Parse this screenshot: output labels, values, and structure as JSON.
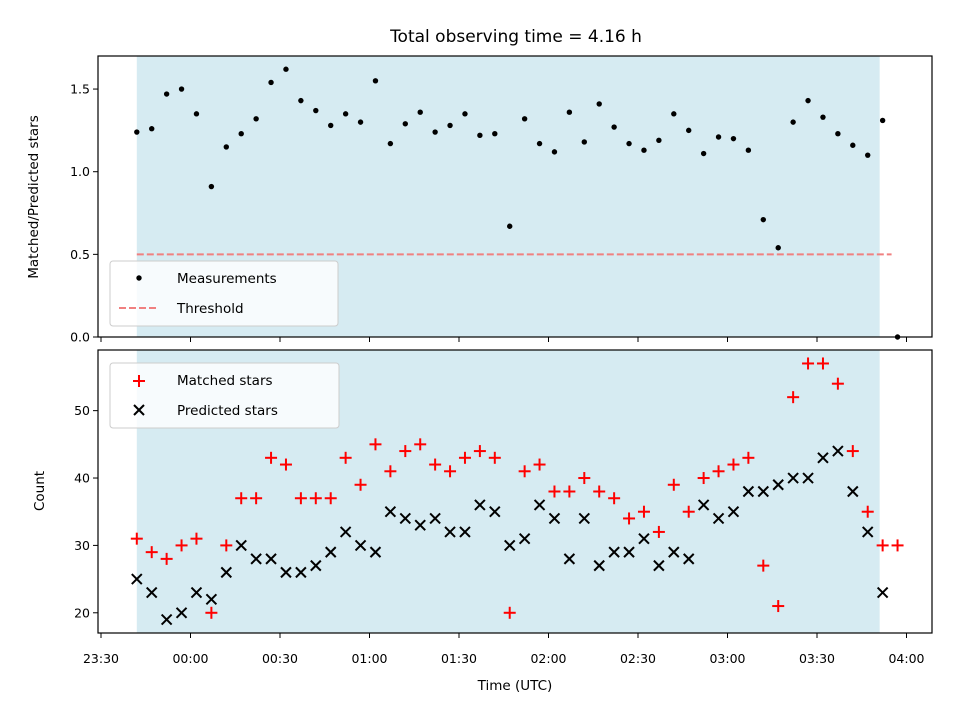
{
  "chart_data": [
    {
      "type": "scatter",
      "title": "Total observing time = 4.16 h",
      "xlabel": "",
      "ylabel": "Matched/Predicted stars",
      "ylim": [
        0,
        1.7
      ],
      "yticks": [
        "0.0",
        "0.5",
        "1.0",
        "1.5"
      ],
      "observing_window": [
        "23:42",
        "03:51"
      ],
      "legend": {
        "placement": "lower-left",
        "entries": [
          "Measurements",
          "Threshold"
        ]
      },
      "threshold": {
        "name": "Threshold",
        "value": 0.5,
        "color": "#f08080"
      },
      "series": [
        {
          "name": "Measurements",
          "color": "#000000",
          "x": [
            "23:42",
            "23:47",
            "23:52",
            "23:57",
            "00:02",
            "00:07",
            "00:12",
            "00:17",
            "00:22",
            "00:27",
            "00:32",
            "00:37",
            "00:42",
            "00:47",
            "00:52",
            "00:57",
            "01:02",
            "01:07",
            "01:12",
            "01:17",
            "01:22",
            "01:27",
            "01:32",
            "01:37",
            "01:42",
            "01:47",
            "01:52",
            "01:57",
            "02:02",
            "02:07",
            "02:12",
            "02:17",
            "02:22",
            "02:27",
            "02:32",
            "02:37",
            "02:42",
            "02:47",
            "02:52",
            "02:57",
            "03:02",
            "03:07",
            "03:12",
            "03:17",
            "03:22",
            "03:27",
            "03:32",
            "03:37",
            "03:42",
            "03:47",
            "03:52",
            "03:57"
          ],
          "y": [
            1.24,
            1.26,
            1.47,
            1.5,
            1.35,
            0.91,
            1.15,
            1.23,
            1.32,
            1.54,
            1.62,
            1.43,
            1.37,
            1.28,
            1.35,
            1.3,
            1.55,
            1.17,
            1.29,
            1.36,
            1.24,
            1.28,
            1.35,
            1.22,
            1.23,
            0.67,
            1.32,
            1.17,
            1.12,
            1.36,
            1.18,
            1.41,
            1.27,
            1.17,
            1.13,
            1.19,
            1.35,
            1.25,
            1.11,
            1.21,
            1.2,
            1.13,
            0.71,
            0.54,
            1.3,
            1.43,
            1.33,
            1.23,
            1.16,
            1.1,
            1.31,
            0.0
          ]
        }
      ]
    },
    {
      "type": "scatter",
      "title": "",
      "xlabel": "Time (UTC)",
      "ylabel": "Count",
      "ylim": [
        17,
        59
      ],
      "yticks": [
        "20",
        "30",
        "40",
        "50"
      ],
      "xticks": [
        "23:30",
        "00:00",
        "00:30",
        "01:00",
        "01:30",
        "02:00",
        "02:30",
        "03:00",
        "03:30",
        "04:00"
      ],
      "observing_window": [
        "23:42",
        "03:51"
      ],
      "legend": {
        "placement": "top-left",
        "entries": [
          "Matched stars",
          "Predicted stars"
        ]
      },
      "series": [
        {
          "name": "Matched stars",
          "marker": "plus",
          "color": "#ff0000",
          "x": [
            "23:42",
            "23:47",
            "23:52",
            "23:57",
            "00:02",
            "00:07",
            "00:12",
            "00:17",
            "00:22",
            "00:27",
            "00:32",
            "00:37",
            "00:42",
            "00:47",
            "00:52",
            "00:57",
            "01:02",
            "01:07",
            "01:12",
            "01:17",
            "01:22",
            "01:27",
            "01:32",
            "01:37",
            "01:42",
            "01:47",
            "01:52",
            "01:57",
            "02:02",
            "02:07",
            "02:12",
            "02:17",
            "02:22",
            "02:27",
            "02:32",
            "02:37",
            "02:42",
            "02:47",
            "02:52",
            "02:57",
            "03:02",
            "03:07",
            "03:12",
            "03:17",
            "03:22",
            "03:27",
            "03:32",
            "03:37",
            "03:42",
            "03:47",
            "03:52",
            "03:57"
          ],
          "y": [
            31,
            29,
            28,
            30,
            31,
            20,
            30,
            37,
            37,
            43,
            42,
            37,
            37,
            37,
            43,
            39,
            45,
            41,
            44,
            45,
            42,
            41,
            43,
            44,
            43,
            20,
            41,
            42,
            38,
            38,
            40,
            38,
            37,
            34,
            35,
            32,
            39,
            35,
            40,
            41,
            42,
            43,
            27,
            21,
            52,
            57,
            57,
            54,
            44,
            35,
            30,
            30
          ]
        },
        {
          "name": "Predicted stars",
          "marker": "x",
          "color": "#000000",
          "x": [
            "23:42",
            "23:47",
            "23:52",
            "23:57",
            "00:02",
            "00:07",
            "00:12",
            "00:17",
            "00:22",
            "00:27",
            "00:32",
            "00:37",
            "00:42",
            "00:47",
            "00:52",
            "00:57",
            "01:02",
            "01:07",
            "01:12",
            "01:17",
            "01:22",
            "01:27",
            "01:32",
            "01:37",
            "01:42",
            "01:47",
            "01:52",
            "01:57",
            "02:02",
            "02:07",
            "02:12",
            "02:17",
            "02:22",
            "02:27",
            "02:32",
            "02:37",
            "02:42",
            "02:47",
            "02:52",
            "02:57",
            "03:02",
            "03:07",
            "03:12",
            "03:17",
            "03:22",
            "03:27",
            "03:32",
            "03:37",
            "03:42",
            "03:47",
            "03:52"
          ],
          "y": [
            25,
            23,
            19,
            20,
            23,
            22,
            26,
            30,
            28,
            28,
            26,
            26,
            27,
            29,
            32,
            30,
            29,
            35,
            34,
            33,
            34,
            32,
            32,
            36,
            35,
            30,
            31,
            36,
            34,
            28,
            34,
            27,
            29,
            29,
            31,
            27,
            29,
            28,
            36,
            34,
            35,
            38,
            38,
            39,
            40,
            40,
            43,
            44,
            38,
            32,
            23
          ]
        }
      ]
    }
  ]
}
